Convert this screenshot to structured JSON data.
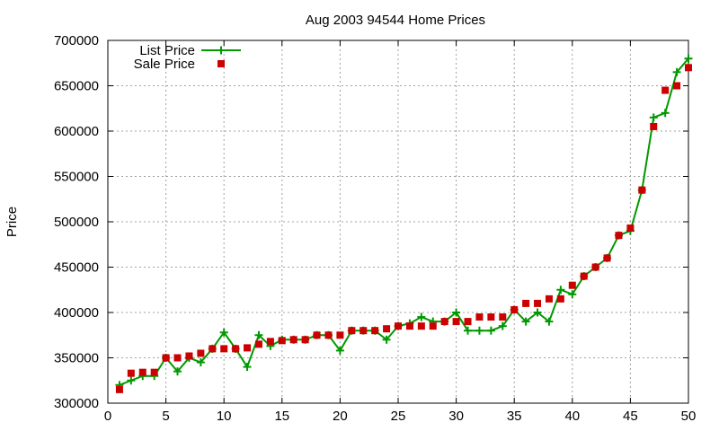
{
  "chart_data": {
    "type": "line",
    "title": "Aug 2003 94544 Home Prices",
    "xlabel": "",
    "ylabel": "Price",
    "xlim": [
      0,
      50
    ],
    "ylim": [
      300000,
      700000
    ],
    "x_ticks": [
      "0",
      "5",
      "10",
      "15",
      "20",
      "25",
      "30",
      "35",
      "40",
      "45",
      "50"
    ],
    "y_ticks": [
      "300000",
      "350000",
      "400000",
      "450000",
      "500000",
      "550000",
      "600000",
      "650000",
      "700000"
    ],
    "grid": true,
    "legend_position": "top-left",
    "x": [
      1,
      2,
      3,
      4,
      5,
      6,
      7,
      8,
      9,
      10,
      11,
      12,
      13,
      14,
      15,
      16,
      17,
      18,
      19,
      20,
      21,
      22,
      23,
      24,
      25,
      26,
      27,
      28,
      29,
      30,
      31,
      32,
      33,
      34,
      35,
      36,
      37,
      38,
      39,
      40,
      41,
      42,
      43,
      44,
      45,
      46,
      47,
      48,
      49,
      50
    ],
    "series": [
      {
        "name": "List Price",
        "style": "line-points",
        "color": "#009900",
        "marker": "plus",
        "values": [
          320000,
          325000,
          330000,
          330000,
          350000,
          335000,
          350000,
          345000,
          360000,
          378000,
          360000,
          340000,
          375000,
          363000,
          370000,
          370000,
          370000,
          375000,
          375000,
          358000,
          380000,
          380000,
          380000,
          370000,
          385000,
          388000,
          395000,
          390000,
          390000,
          400000,
          380000,
          380000,
          380000,
          385000,
          403000,
          390000,
          400000,
          390000,
          425000,
          420000,
          440000,
          450000,
          460000,
          485000,
          490000,
          535000,
          615000,
          620000,
          665000,
          680000
        ]
      },
      {
        "name": "Sale Price",
        "style": "points",
        "color": "#cc0000",
        "marker": "square",
        "values": [
          315000,
          333000,
          334000,
          334000,
          350000,
          350000,
          352000,
          355000,
          360000,
          360000,
          360000,
          361000,
          365000,
          368000,
          369000,
          370000,
          370000,
          375000,
          375000,
          375000,
          380000,
          380000,
          380000,
          382000,
          385000,
          385000,
          385000,
          385000,
          390000,
          390000,
          390000,
          395000,
          395000,
          395000,
          403000,
          410000,
          410000,
          415000,
          415000,
          430000,
          440000,
          450000,
          460000,
          485000,
          493000,
          535000,
          605000,
          645000,
          650000,
          670000
        ]
      }
    ]
  }
}
